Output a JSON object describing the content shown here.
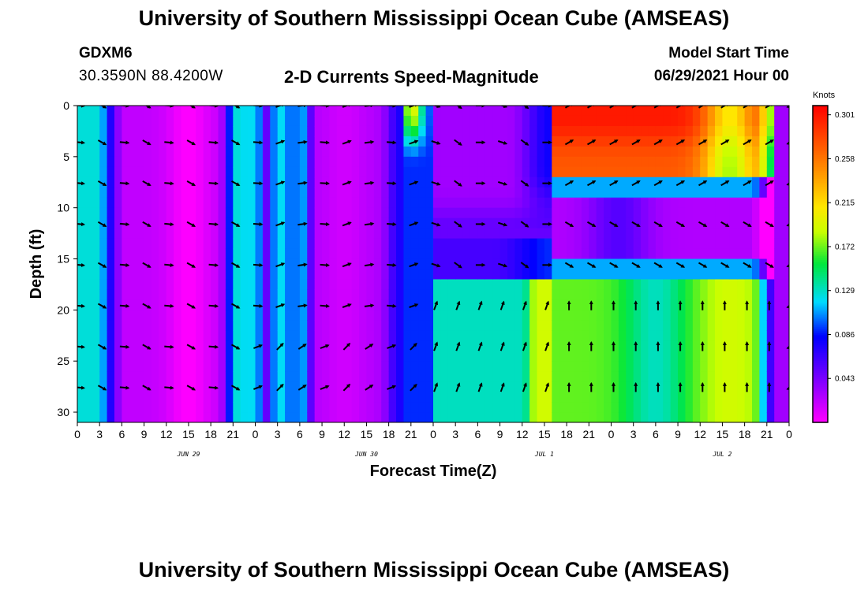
{
  "header": {
    "title": "University of Southern Mississippi Ocean Cube (AMSEAS)",
    "station": "GDXM6",
    "coords": "30.3590N  88.4200W",
    "subtitle": "2-D Currents Speed-Magnitude",
    "start_label": "Model Start Time",
    "start_value": "06/29/2021 Hour 00"
  },
  "footer": {
    "title": "University of Southern Mississippi Ocean Cube (AMSEAS)"
  },
  "chart_data": {
    "type": "heatmap",
    "xlabel": "Forecast Time(Z)",
    "ylabel": "Depth (ft)",
    "x_tick_labels": [
      "0",
      "3",
      "6",
      "9",
      "12",
      "15",
      "18",
      "21",
      "0",
      "3",
      "6",
      "9",
      "12",
      "15",
      "18",
      "21",
      "0",
      "3",
      "6",
      "9",
      "12",
      "15",
      "18",
      "21",
      "0",
      "3",
      "6",
      "9",
      "12",
      "15",
      "18",
      "21",
      "0"
    ],
    "day_labels": [
      {
        "label": "JUN 29",
        "hour": 15
      },
      {
        "label": "JUN 30",
        "hour": 39
      },
      {
        "label": "JUL 1",
        "hour": 63
      },
      {
        "label": "JUL 2",
        "hour": 87
      }
    ],
    "xlim_hours": [
      0,
      96
    ],
    "ylim_ft": [
      0,
      31
    ],
    "y_ticks": [
      0,
      5,
      10,
      15,
      20,
      25,
      30
    ],
    "colorbar": {
      "unit": "Knots",
      "range": [
        0,
        0.31
      ],
      "tick_values": [
        0.043,
        0.086,
        0.129,
        0.172,
        0.215,
        0.258,
        0.301
      ],
      "tick_labels": [
        "0.043",
        "0.086",
        "0.129",
        "0.172",
        "0.215",
        "0.258",
        "0.301"
      ]
    },
    "speed_knots_approx": [
      {
        "hours": "0-3",
        "depth": "all",
        "value": 0.12
      },
      {
        "hours": "6-18",
        "depth": "all",
        "value": 0.02
      },
      {
        "hours": "22-27",
        "depth": "all",
        "value": 0.12
      },
      {
        "hours": "33-42",
        "depth": "all",
        "value": 0.02
      },
      {
        "hours": "44-46",
        "depth": "0-4",
        "value": 0.2
      },
      {
        "hours": "50-60",
        "depth": "0-12",
        "value": 0.03
      },
      {
        "hours": "48-60",
        "depth": "20-31",
        "value": 0.14
      },
      {
        "hours": "61-65",
        "depth": "16-31",
        "value": 0.2
      },
      {
        "hours": "67-81",
        "depth": "0-7",
        "value": 0.28
      },
      {
        "hours": "67-93",
        "depth": "9-15",
        "value": 0.03
      },
      {
        "hours": "67-93",
        "depth": "17-31",
        "value": 0.16
      },
      {
        "hours": "94-96",
        "depth": "all",
        "value": 0.03
      }
    ],
    "arrow_depths_ft": [
      0,
      3.6,
      7.6,
      11.6,
      15.6,
      19.6,
      23.6,
      27.6
    ],
    "arrow_hours_step": 3,
    "arrow_directions_deg_approx": {
      "0-23": 110,
      "24-45": 70,
      "46-63": 80,
      "64-93_deep": 0,
      "64-93_shallow": 60
    }
  },
  "colors": {
    "background": "#ffffff",
    "axis": "#000000",
    "arrow": "#000000"
  }
}
